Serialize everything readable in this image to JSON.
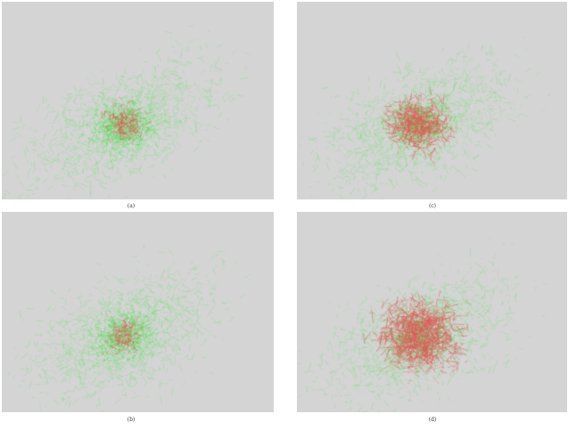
{
  "figure": {
    "panels": [
      {
        "id": "a",
        "caption": "(a)",
        "background": "#d4d4d4",
        "base_color": "#66e066",
        "highlight_color": "#e05555",
        "highlight_level": 0.15
      },
      {
        "id": "b",
        "caption": "(b)",
        "background": "#d4d4d4",
        "base_color": "#66e066",
        "highlight_color": "#e05555",
        "highlight_level": 0.12
      },
      {
        "id": "c",
        "caption": "(c)",
        "background": "#d4d4d4",
        "base_color": "#66e066",
        "highlight_color": "#e05555",
        "highlight_level": 0.45
      },
      {
        "id": "d",
        "caption": "(d)",
        "background": "#d4d4d4",
        "base_color": "#66e066",
        "highlight_color": "#e05555",
        "highlight_level": 0.7
      }
    ]
  }
}
